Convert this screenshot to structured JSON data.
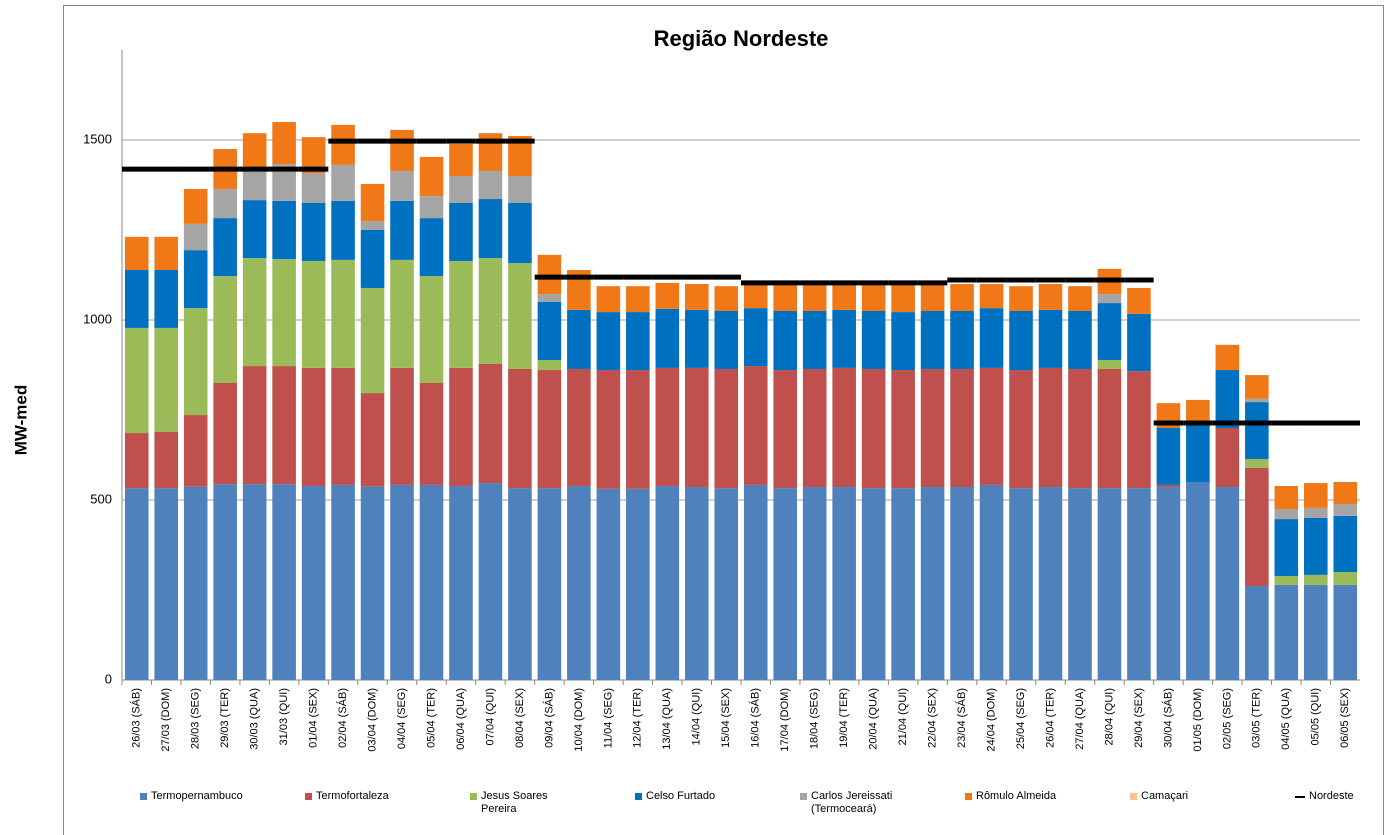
{
  "chart_data": {
    "type": "bar",
    "stacked": true,
    "title": "Região Nordeste",
    "y_label": "MW-med",
    "categories": [
      "26/03 (SÁB)",
      "27/03 (DOM)",
      "28/03 (SEG)",
      "29/03 (TER)",
      "30/03 (QUA)",
      "31/03 (QUI)",
      "01/04 (SEX)",
      "02/04 (SÁB)",
      "03/04 (DOM)",
      "04/04 (SEG)",
      "05/04 (TER)",
      "06/04 (QUA)",
      "07/04 (QUI)",
      "08/04 (SEX)",
      "09/04 (SÁB)",
      "10/04 (DOM)",
      "11/04 (SEG)",
      "12/04 (TER)",
      "13/04 (QUA)",
      "14/04 (QUI)",
      "15/04 (SEX)",
      "16/04 (SÁB)",
      "17/04 (DOM)",
      "18/04 (SEG)",
      "19/04 (TER)",
      "20/04 (QUA)",
      "21/04 (QUI)",
      "22/04 (SEX)",
      "23/04 (SÁB)",
      "24/04 (DOM)",
      "25/04 (SEG)",
      "26/04 (TER)",
      "27/04 (QUA)",
      "28/04 (QUI)",
      "29/04 (SEX)",
      "30/04 (SÁB)",
      "01/05 (DOM)",
      "02/05 (SEG)",
      "03/05 (TER)",
      "04/05 (QUA)",
      "05/05 (QUI)",
      "06/05 (SEX)"
    ],
    "series": [
      {
        "name": "Termopernambuco",
        "color": "#4f81bd",
        "values": [
          533,
          533,
          537,
          544,
          544,
          544,
          539,
          542,
          537,
          542,
          542,
          539,
          547,
          533,
          533,
          539,
          531,
          531,
          539,
          536,
          533,
          542,
          533,
          536,
          536,
          533,
          533,
          536,
          536,
          542,
          533,
          536,
          533,
          533,
          533,
          536,
          550,
          536,
          261,
          264,
          264,
          264
        ]
      },
      {
        "name": "Termofortaleza",
        "color": "#c0504d",
        "values": [
          153,
          156,
          199,
          281,
          328,
          328,
          328,
          325,
          260,
          325,
          283,
          328,
          331,
          331,
          328,
          325,
          330,
          330,
          328,
          331,
          331,
          330,
          328,
          328,
          331,
          331,
          328,
          328,
          328,
          325,
          328,
          331,
          331,
          331,
          325,
          6,
          0,
          164,
          328,
          0,
          0,
          0
        ]
      },
      {
        "name": "Jesus Soares Pereira",
        "color": "#9bbb59",
        "values": [
          292,
          289,
          297,
          297,
          300,
          297,
          297,
          300,
          292,
          300,
          297,
          297,
          294,
          294,
          28,
          0,
          0,
          0,
          0,
          0,
          0,
          0,
          0,
          0,
          0,
          0,
          0,
          0,
          0,
          0,
          0,
          0,
          0,
          25,
          0,
          0,
          0,
          0,
          25,
          25,
          28,
          36
        ]
      },
      {
        "name": "Celso Furtado",
        "color": "#0070c0",
        "values": [
          161,
          161,
          161,
          161,
          161,
          162,
          161,
          164,
          161,
          164,
          161,
          161,
          164,
          167,
          161,
          164,
          161,
          161,
          164,
          161,
          161,
          161,
          164,
          161,
          161,
          161,
          161,
          161,
          161,
          166,
          164,
          161,
          161,
          158,
          159,
          158,
          164,
          161,
          158,
          158,
          158,
          156
        ]
      },
      {
        "name": "Carlos Jereissati (Termoceará)",
        "color": "#a5a5a5",
        "values": [
          0,
          0,
          73,
          81,
          89,
          102,
          83,
          100,
          25,
          83,
          61,
          75,
          78,
          75,
          22,
          0,
          0,
          0,
          0,
          0,
          0,
          0,
          0,
          0,
          0,
          0,
          0,
          0,
          0,
          0,
          0,
          0,
          0,
          25,
          0,
          0,
          0,
          0,
          9,
          28,
          28,
          33
        ]
      },
      {
        "name": "Rômulo Almeida",
        "color": "#f07817",
        "values": [
          92,
          92,
          97,
          111,
          97,
          117,
          100,
          111,
          103,
          114,
          109,
          89,
          105,
          111,
          109,
          111,
          72,
          72,
          72,
          72,
          69,
          67,
          72,
          72,
          72,
          72,
          75,
          72,
          75,
          67,
          69,
          72,
          69,
          70,
          72,
          69,
          64,
          70,
          66,
          64,
          69,
          61
        ]
      },
      {
        "name": "Camaçari",
        "color": "#fac090",
        "values": [
          0,
          0,
          0,
          0,
          0,
          0,
          0,
          0,
          0,
          0,
          0,
          0,
          0,
          0,
          0,
          0,
          0,
          0,
          0,
          0,
          0,
          0,
          0,
          0,
          0,
          0,
          0,
          0,
          0,
          0,
          0,
          0,
          0,
          0,
          0,
          0,
          0,
          0,
          0,
          0,
          0,
          0
        ]
      },
      {
        "name": "Nordeste",
        "color": "#000000",
        "type": "line",
        "values": [
          1419,
          1419,
          1419,
          1419,
          1419,
          1419,
          1419,
          1497,
          1497,
          1497,
          1497,
          1497,
          1497,
          1497,
          1119,
          1119,
          1119,
          1119,
          1119,
          1119,
          1119,
          1103,
          1103,
          1103,
          1103,
          1103,
          1103,
          1103,
          1111,
          1111,
          1111,
          1111,
          1111,
          1111,
          1111,
          714,
          714,
          714,
          714,
          714,
          714,
          714
        ]
      }
    ],
    "ylim": [
      0,
      1750
    ],
    "yticks": [
      0,
      500,
      1000,
      1500
    ],
    "grid": true,
    "legend": "bottom"
  }
}
